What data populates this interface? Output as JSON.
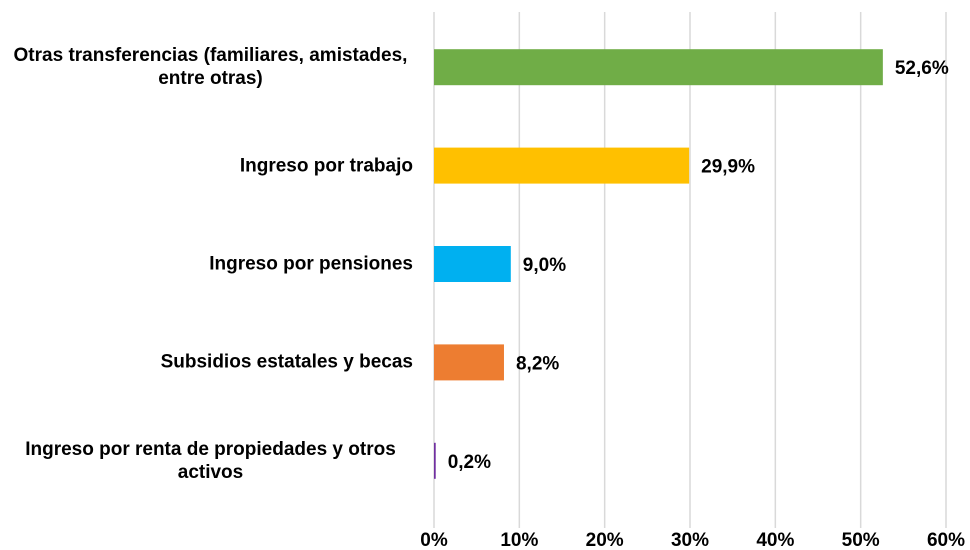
{
  "chart_data": {
    "type": "barh",
    "categories": [
      "Otras transferencias (familiares, amistades, entre otras)",
      "Ingreso por trabajo",
      "Ingreso por pensiones",
      "Subsidios estatales y becas",
      "Ingreso por renta de propiedades y otros activos"
    ],
    "values": [
      52.6,
      29.9,
      9.0,
      8.2,
      0.2
    ],
    "value_labels": [
      "52,6%",
      "29,9%",
      "9,0%",
      "8,2%",
      "0,2%"
    ],
    "colors": [
      "#70ad47",
      "#ffc000",
      "#00b0f0",
      "#ed7d31",
      "#7030a0"
    ],
    "xlim": [
      0,
      60
    ],
    "xticks": [
      {
        "value": 0,
        "label": "0%"
      },
      {
        "value": 10,
        "label": "10%"
      },
      {
        "value": 20,
        "label": "20%"
      },
      {
        "value": 30,
        "label": "30%"
      },
      {
        "value": 40,
        "label": "40%"
      },
      {
        "value": 50,
        "label": "50%"
      },
      {
        "value": 60,
        "label": "60%"
      }
    ],
    "grid": true
  }
}
